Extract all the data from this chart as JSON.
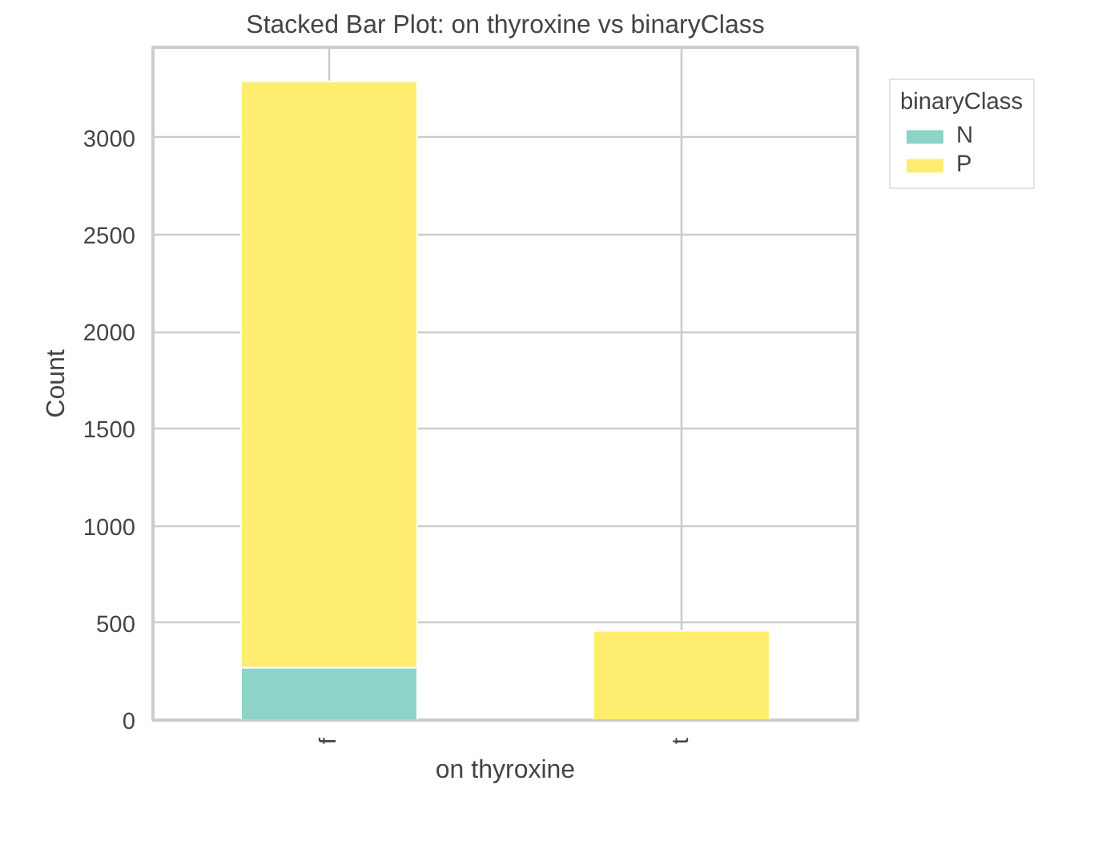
{
  "chart_data": {
    "type": "bar",
    "stacked": true,
    "title": "Stacked Bar Plot: on thyroxine vs binaryClass",
    "xlabel": "on thyroxine",
    "ylabel": "Count",
    "legend_title": "binaryClass",
    "categories": [
      "f",
      "t"
    ],
    "series": [
      {
        "name": "N",
        "color": "#8dd3c7",
        "values": [
          270,
          0
        ]
      },
      {
        "name": "P",
        "color": "#ffed6f",
        "values": [
          3020,
          460
        ]
      }
    ],
    "ylim": [
      0,
      3465
    ],
    "yticks": [
      0,
      500,
      1000,
      1500,
      2000,
      2500,
      3000
    ],
    "grid": true,
    "legend": "top right"
  }
}
